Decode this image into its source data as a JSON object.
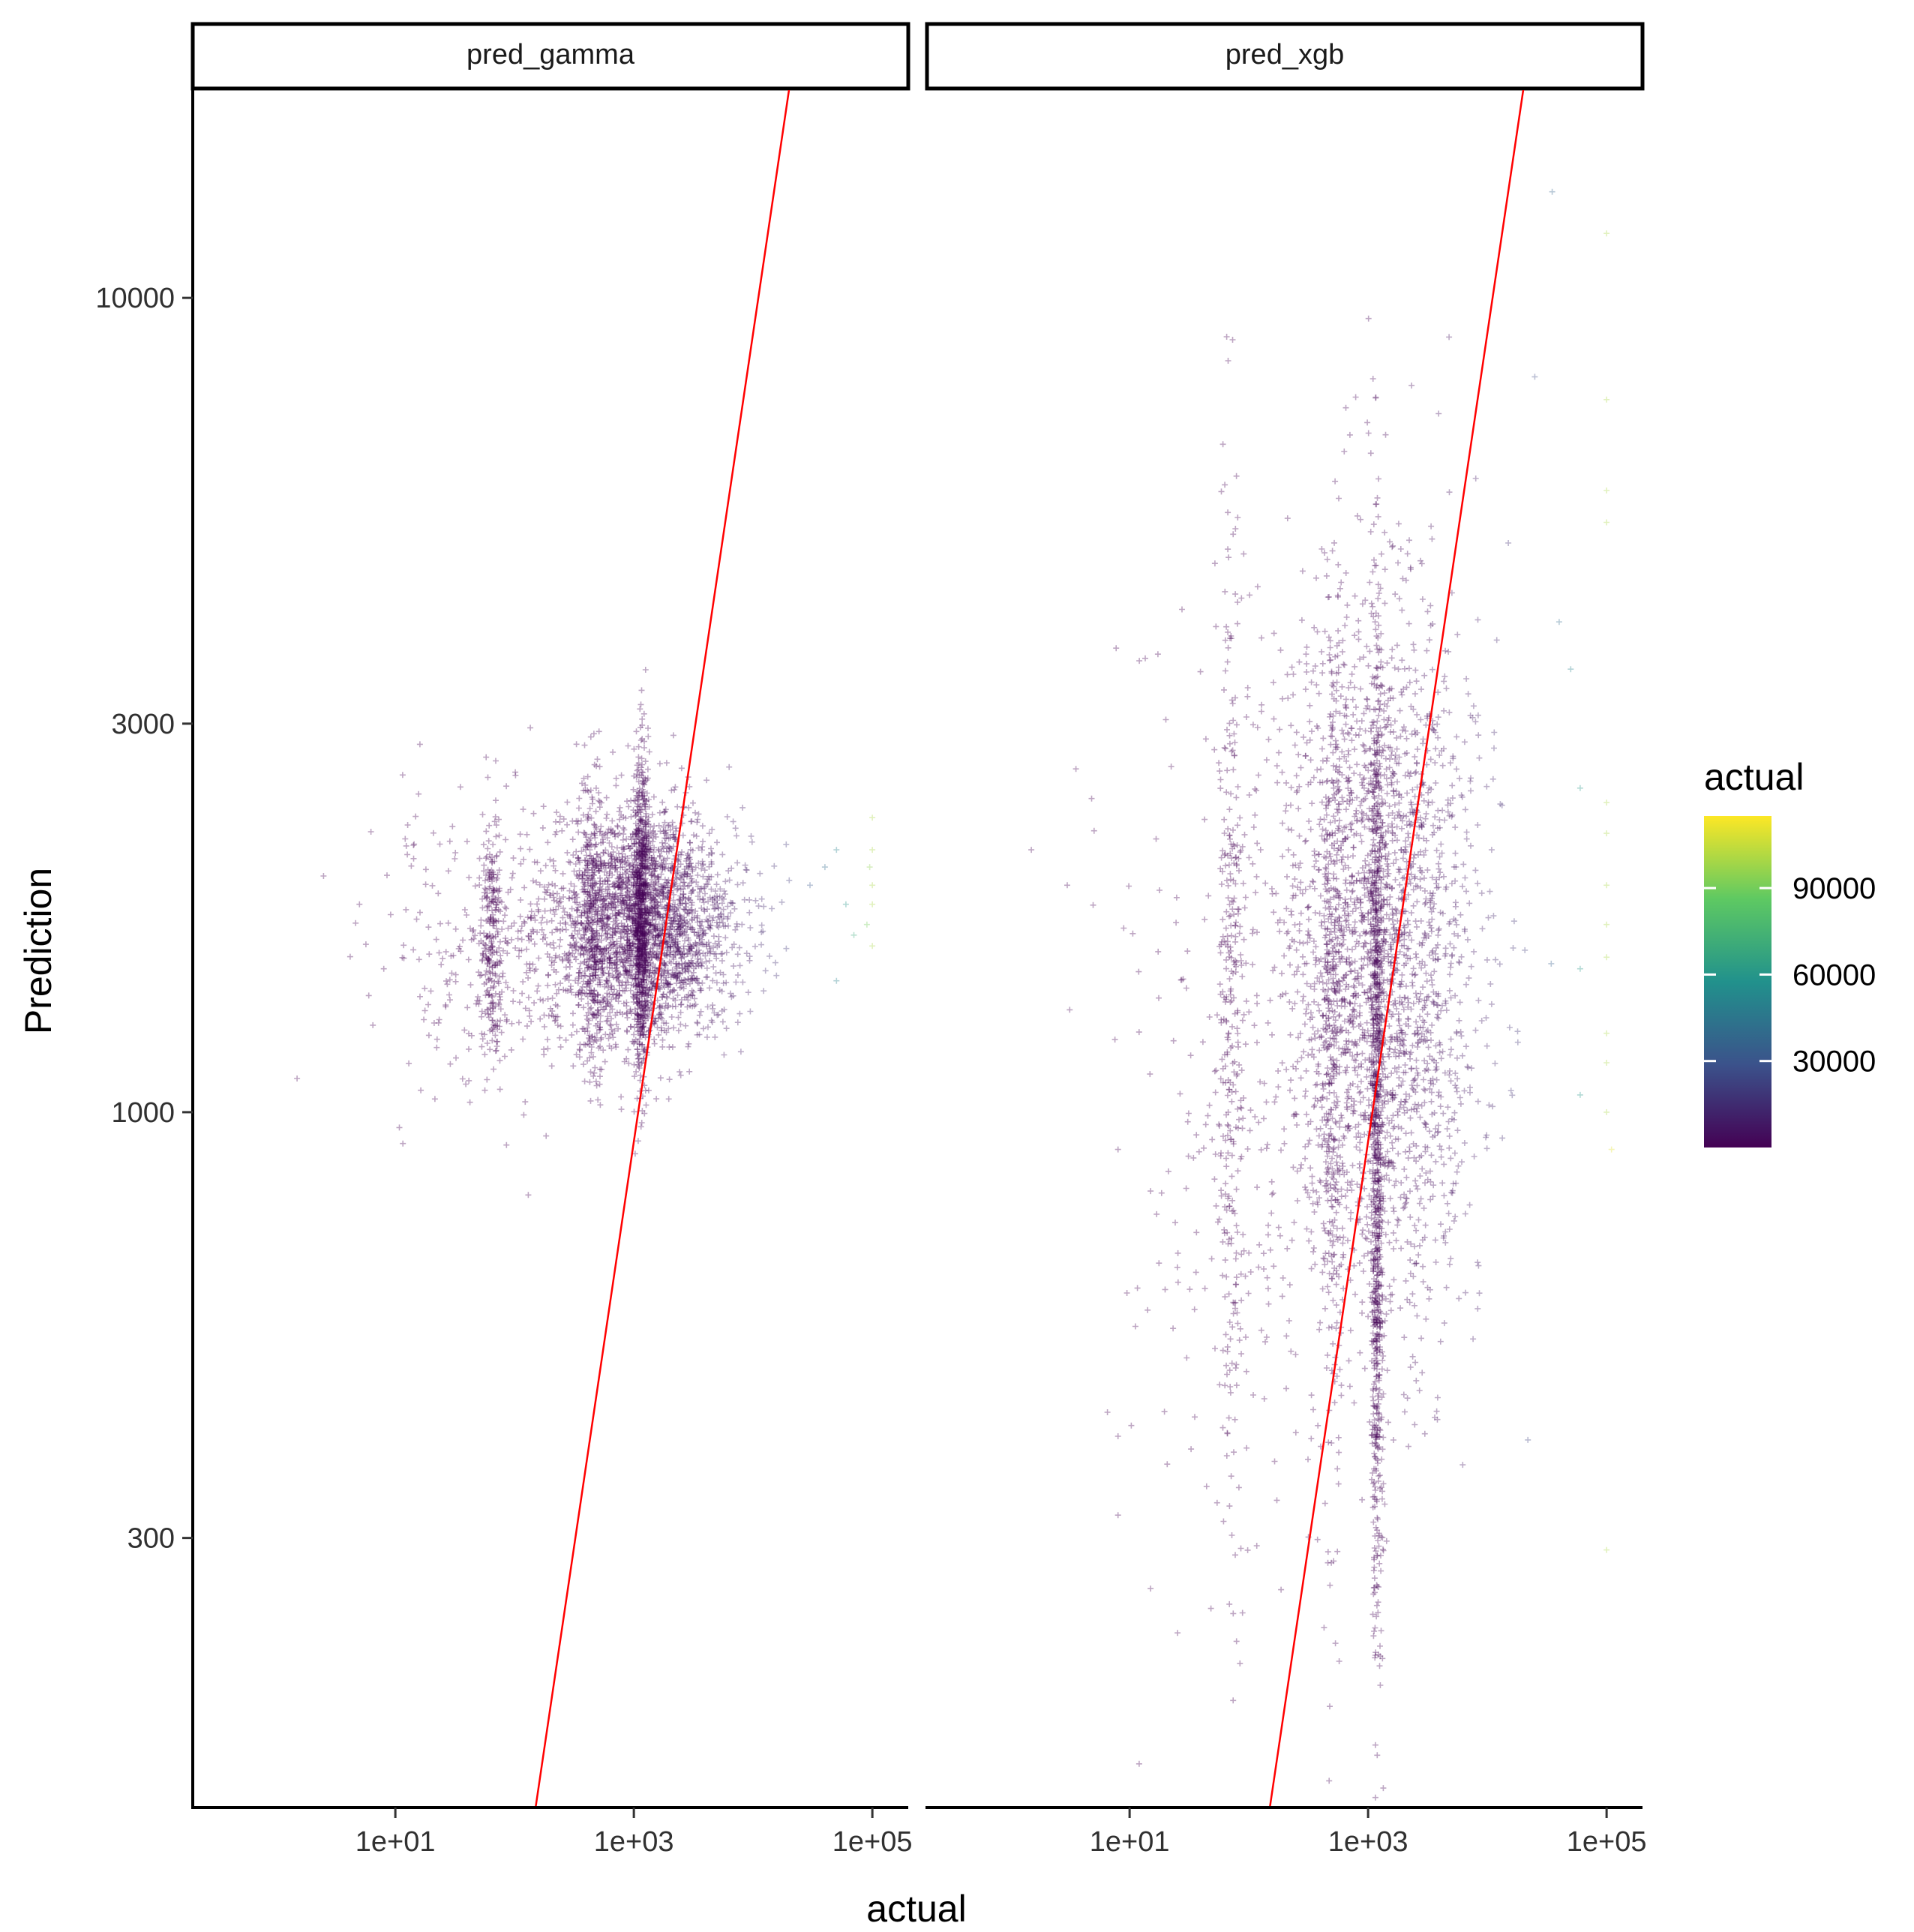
{
  "chart_data": {
    "type": "scatter",
    "title": "",
    "xlabel": "actual",
    "ylabel": "Prediction",
    "x_scale": "log10",
    "y_scale": "log10",
    "xlim": [
      0.2,
      200000
    ],
    "ylim": [
      140,
      18000
    ],
    "x_ticks": [
      {
        "value": 10,
        "label": "1e+01"
      },
      {
        "value": 1000,
        "label": "1e+03"
      },
      {
        "value": 100000,
        "label": "1e+05"
      }
    ],
    "y_ticks": [
      {
        "value": 300,
        "label": "300"
      },
      {
        "value": 1000,
        "label": "1000"
      },
      {
        "value": 3000,
        "label": "3000"
      },
      {
        "value": 10000,
        "label": "10000"
      }
    ],
    "grid": false,
    "reference_line": {
      "color": "#ff0000",
      "points": [
        [
          150,
          140
        ],
        [
          20000,
          18000
        ]
      ]
    },
    "color_scale": {
      "title": "actual",
      "palette": "viridis",
      "colors": [
        "#440154",
        "#3b528b",
        "#21918c",
        "#5ec962",
        "#fde725"
      ],
      "domain": [
        0,
        115000
      ],
      "ticks": [
        30000,
        60000,
        90000
      ],
      "tick_labels": [
        "30000",
        "60000",
        "90000"
      ],
      "legend_position": "right"
    },
    "point_style": {
      "shape": "plus",
      "alpha": 0.35
    },
    "facets": [
      {
        "label": "pred_gamma",
        "clusters": [
          {
            "x_center": 1200,
            "x_spread_log": 0.38,
            "y_center": 1700,
            "y_spread_log": 0.07,
            "count": 2600
          },
          {
            "x_center": 1150,
            "x_spread_log": 0.03,
            "y_center": 1750,
            "y_spread_log": 0.1,
            "count": 700
          },
          {
            "x_center": 450,
            "x_spread_log": 0.05,
            "y_center": 1700,
            "y_spread_log": 0.09,
            "count": 300
          },
          {
            "x_center": 65,
            "x_spread_log": 0.05,
            "y_center": 1650,
            "y_spread_log": 0.07,
            "count": 250
          },
          {
            "x_center": 80,
            "x_spread_log": 0.55,
            "y_center": 1600,
            "y_spread_log": 0.09,
            "count": 300
          }
        ],
        "points": [
          {
            "x": 1.5,
            "y": 1100
          },
          {
            "x": 2.5,
            "y": 1950
          },
          {
            "x": 5,
            "y": 1800
          },
          {
            "x": 8,
            "y": 1500
          },
          {
            "x": 30000,
            "y": 1900
          },
          {
            "x": 40000,
            "y": 2000
          },
          {
            "x": 50000,
            "y": 2100
          },
          {
            "x": 60000,
            "y": 1800
          },
          {
            "x": 70000,
            "y": 1650
          },
          {
            "x": 90000,
            "y": 1700
          },
          {
            "x": 95000,
            "y": 2000
          },
          {
            "x": 100000,
            "y": 2100
          },
          {
            "x": 100000,
            "y": 1900
          },
          {
            "x": 100000,
            "y": 2300
          },
          {
            "x": 100000,
            "y": 1600
          },
          {
            "x": 100000,
            "y": 1800
          },
          {
            "x": 50000,
            "y": 1450
          }
        ]
      },
      {
        "label": "pred_xgb",
        "clusters": [
          {
            "x_center": 1200,
            "x_spread_log": 0.4,
            "y_center": 1500,
            "y_spread_log": 0.22,
            "count": 2500
          },
          {
            "x_center": 1180,
            "x_spread_log": 0.025,
            "y_center": 1000,
            "y_spread_log": 0.3,
            "count": 900
          },
          {
            "x_center": 500,
            "x_spread_log": 0.05,
            "y_center": 1100,
            "y_spread_log": 0.3,
            "count": 300
          },
          {
            "x_center": 70,
            "x_spread_log": 0.05,
            "y_center": 1300,
            "y_spread_log": 0.3,
            "count": 300
          },
          {
            "x_center": 70,
            "x_spread_log": 0.55,
            "y_center": 1200,
            "y_spread_log": 0.3,
            "count": 250
          }
        ],
        "points": [
          {
            "x": 1.5,
            "y": 2100
          },
          {
            "x": 3,
            "y": 1900
          },
          {
            "x": 8,
            "y": 900
          },
          {
            "x": 8,
            "y": 400
          },
          {
            "x": 8,
            "y": 320
          },
          {
            "x": 15,
            "y": 800
          },
          {
            "x": 15,
            "y": 260
          },
          {
            "x": 25000,
            "y": 8000
          },
          {
            "x": 35000,
            "y": 13500
          },
          {
            "x": 40000,
            "y": 4000
          },
          {
            "x": 50000,
            "y": 3500
          },
          {
            "x": 60000,
            "y": 2500
          },
          {
            "x": 60000,
            "y": 1500
          },
          {
            "x": 60000,
            "y": 1050
          },
          {
            "x": 100000,
            "y": 12000
          },
          {
            "x": 100000,
            "y": 7500
          },
          {
            "x": 100000,
            "y": 5800
          },
          {
            "x": 100000,
            "y": 5300
          },
          {
            "x": 100000,
            "y": 2400
          },
          {
            "x": 100000,
            "y": 2200
          },
          {
            "x": 100000,
            "y": 1900
          },
          {
            "x": 100000,
            "y": 1700
          },
          {
            "x": 100000,
            "y": 1550
          },
          {
            "x": 100000,
            "y": 1250
          },
          {
            "x": 100000,
            "y": 1150
          },
          {
            "x": 100000,
            "y": 1000
          },
          {
            "x": 100000,
            "y": 290
          },
          {
            "x": 110000,
            "y": 900
          },
          {
            "x": 15000,
            "y": 5000
          },
          {
            "x": 12000,
            "y": 3800
          },
          {
            "x": 8000,
            "y": 6000
          }
        ]
      }
    ]
  }
}
